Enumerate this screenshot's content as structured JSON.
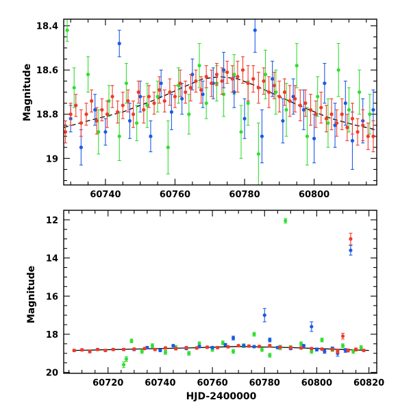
{
  "colors": {
    "green": "#33dd33",
    "blue": "#1a5be6",
    "red": "#f03a2a",
    "fit": "#000000"
  },
  "chart_data": [
    {
      "type": "scatter",
      "panel": "top",
      "title": "",
      "xlabel": "",
      "ylabel": "Magnitude",
      "xlim": [
        60728,
        60818
      ],
      "ylim": [
        19.12,
        18.37
      ],
      "y_inverted": true,
      "xticks": [
        60740,
        60760,
        60780,
        60800
      ],
      "yticks": [
        18.4,
        18.6,
        18.8,
        19
      ],
      "ytick_labels": [
        "18.4",
        "18.6",
        "18.8",
        "19"
      ],
      "grid": false,
      "legend": "none",
      "fit": {
        "style": "dashed",
        "x": [
          60728,
          60735,
          60745,
          60755,
          60762,
          60768,
          60773,
          60778,
          60783,
          60790,
          60797,
          60805,
          60812,
          60818
        ],
        "y": [
          18.86,
          18.83,
          18.79,
          18.73,
          18.68,
          18.64,
          18.63,
          18.64,
          18.67,
          18.72,
          18.77,
          18.82,
          18.85,
          18.87
        ]
      },
      "series": [
        {
          "color": "green",
          "x": [
            60729,
            60731,
            60735,
            60738,
            60741,
            60744,
            60746,
            60749,
            60752,
            60755,
            60758,
            60761,
            60764,
            60767,
            60769,
            60772,
            60774,
            60777,
            60779,
            60781,
            60784,
            60786,
            60789,
            60792,
            60795,
            60798,
            60801,
            60804,
            60807,
            60810,
            60813,
            60816
          ],
          "y": [
            18.42,
            18.68,
            18.62,
            18.88,
            18.74,
            18.9,
            18.66,
            18.84,
            18.76,
            18.72,
            18.95,
            18.67,
            18.8,
            18.58,
            18.75,
            18.66,
            18.71,
            18.62,
            18.88,
            18.75,
            18.98,
            18.62,
            18.7,
            18.78,
            18.58,
            18.9,
            18.72,
            18.84,
            18.6,
            18.78,
            18.7,
            18.8
          ],
          "err": [
            0.05,
            0.09,
            0.08,
            0.1,
            0.07,
            0.11,
            0.09,
            0.08,
            0.1,
            0.07,
            0.12,
            0.08,
            0.09,
            0.1,
            0.07,
            0.08,
            0.1,
            0.09,
            0.12,
            0.1,
            0.14,
            0.11,
            0.1,
            0.12,
            0.1,
            0.13,
            0.09,
            0.11,
            0.12,
            0.1,
            0.1,
            0.09
          ]
        },
        {
          "color": "blue",
          "x": [
            60730,
            60733,
            60737,
            60740,
            60744,
            60747,
            60750,
            60753,
            60756,
            60759,
            60762,
            60765,
            60768,
            60771,
            60774,
            60777,
            60780,
            60783,
            60785,
            60788,
            60791,
            60794,
            60797,
            60800,
            60803,
            60806,
            60809,
            60811,
            60814,
            60817
          ],
          "y": [
            18.82,
            18.95,
            18.78,
            18.88,
            18.48,
            18.83,
            18.72,
            18.9,
            18.66,
            18.79,
            18.73,
            18.62,
            18.71,
            18.66,
            18.6,
            18.7,
            18.82,
            18.42,
            18.9,
            18.64,
            18.83,
            18.72,
            18.78,
            18.91,
            18.66,
            18.85,
            18.75,
            18.92,
            18.83,
            18.78
          ],
          "err": [
            0.06,
            0.08,
            0.07,
            0.06,
            0.06,
            0.08,
            0.07,
            0.07,
            0.06,
            0.08,
            0.07,
            0.07,
            0.06,
            0.07,
            0.08,
            0.07,
            0.09,
            0.1,
            0.12,
            0.08,
            0.1,
            0.08,
            0.09,
            0.11,
            0.09,
            0.1,
            0.1,
            0.13,
            0.1,
            0.09
          ]
        },
        {
          "color": "red",
          "x": [
            60728.5,
            60730,
            60731.5,
            60733,
            60734.5,
            60736,
            60737.5,
            60739,
            60740.5,
            60742,
            60743.5,
            60745,
            60746.5,
            60748,
            60749.5,
            60751,
            60752.5,
            60754,
            60755.5,
            60757,
            60758.5,
            60760,
            60761.5,
            60763,
            60764.5,
            60766,
            60767.5,
            60769,
            60770.5,
            60772,
            60773.5,
            60775,
            60776.5,
            60778,
            60779.5,
            60781,
            60782.5,
            60784,
            60785.5,
            60787,
            60788.5,
            60790,
            60791.5,
            60793,
            60794.5,
            60796,
            60797.5,
            60799,
            60800.5,
            60802,
            60803.5,
            60805,
            60806.5,
            60808,
            60809.5,
            60811,
            60812.5,
            60814,
            60815.5,
            60817
          ],
          "y": [
            18.88,
            18.8,
            18.76,
            18.84,
            18.8,
            18.74,
            18.83,
            18.78,
            18.8,
            18.72,
            18.79,
            18.76,
            18.74,
            18.8,
            18.7,
            18.78,
            18.72,
            18.75,
            18.69,
            18.74,
            18.7,
            18.72,
            18.66,
            18.7,
            18.68,
            18.65,
            18.69,
            18.63,
            18.66,
            18.62,
            18.65,
            18.61,
            18.64,
            18.63,
            18.6,
            18.66,
            18.64,
            18.68,
            18.65,
            18.7,
            18.67,
            18.72,
            18.7,
            18.74,
            18.73,
            18.76,
            18.75,
            18.78,
            18.8,
            18.77,
            18.82,
            18.8,
            18.84,
            18.8,
            18.86,
            18.82,
            18.88,
            18.85,
            18.9,
            18.9
          ],
          "err": [
            0.05,
            0.05,
            0.05,
            0.06,
            0.05,
            0.05,
            0.06,
            0.05,
            0.06,
            0.05,
            0.05,
            0.06,
            0.05,
            0.06,
            0.05,
            0.06,
            0.05,
            0.05,
            0.06,
            0.05,
            0.06,
            0.05,
            0.06,
            0.05,
            0.06,
            0.05,
            0.06,
            0.05,
            0.06,
            0.05,
            0.06,
            0.05,
            0.06,
            0.07,
            0.06,
            0.08,
            0.06,
            0.07,
            0.06,
            0.07,
            0.06,
            0.07,
            0.06,
            0.07,
            0.06,
            0.07,
            0.06,
            0.07,
            0.06,
            0.07,
            0.06,
            0.07,
            0.06,
            0.07,
            0.06,
            0.07,
            0.06,
            0.07,
            0.06,
            0.07
          ]
        }
      ]
    },
    {
      "type": "scatter",
      "panel": "bottom",
      "title": "",
      "xlabel": "HJD-2400000",
      "ylabel": "Magnitude",
      "xlim": [
        60703,
        60823
      ],
      "ylim": [
        20.05,
        11.5
      ],
      "y_inverted": true,
      "xticks": [
        60720,
        60740,
        60760,
        60780,
        60800,
        60820
      ],
      "yticks": [
        12,
        14,
        16,
        18,
        20
      ],
      "ytick_labels": [
        "12",
        "14",
        "16",
        "18",
        "20"
      ],
      "grid": false,
      "legend": "none",
      "fit": {
        "style": "solid",
        "x": [
          60707,
          60730,
          60750,
          60770,
          60790,
          60810,
          60820
        ],
        "y": [
          18.85,
          18.78,
          18.72,
          18.64,
          18.7,
          18.8,
          18.85
        ]
      },
      "series": [
        {
          "color": "green",
          "x": [
            60726,
            60727,
            60729,
            60733,
            60737,
            60742,
            60746,
            60751,
            60755,
            60760,
            60764,
            60768,
            60772,
            60776,
            60779,
            60782,
            60786,
            60788,
            60790,
            60794,
            60798,
            60802,
            60806,
            60810,
            60814,
            60817
          ],
          "y": [
            19.6,
            19.3,
            18.35,
            18.9,
            18.6,
            18.95,
            18.7,
            19.0,
            18.5,
            18.8,
            18.45,
            18.9,
            18.6,
            18.0,
            18.8,
            19.1,
            18.7,
            12.05,
            18.7,
            18.5,
            18.9,
            18.3,
            18.8,
            18.6,
            18.9,
            18.7
          ],
          "err": [
            0.15,
            0.12,
            0.1,
            0.1,
            0.1,
            0.1,
            0.1,
            0.1,
            0.1,
            0.1,
            0.1,
            0.1,
            0.1,
            0.1,
            0.1,
            0.1,
            0.12,
            0.12,
            0.1,
            0.1,
            0.1,
            0.1,
            0.1,
            0.1,
            0.1,
            0.1
          ]
        },
        {
          "color": "blue",
          "x": [
            60730,
            60735,
            60740,
            60745,
            60750,
            60755,
            60760,
            60765,
            60768,
            60772,
            60776,
            60780,
            60782,
            60785,
            60790,
            60795,
            60798,
            60800,
            60803,
            60806,
            60808,
            60811,
            60813
          ],
          "y": [
            18.8,
            18.7,
            18.85,
            18.6,
            18.75,
            18.65,
            18.7,
            18.55,
            18.2,
            18.6,
            18.65,
            17.0,
            18.3,
            18.7,
            18.75,
            18.6,
            17.6,
            18.8,
            18.9,
            18.75,
            19.0,
            18.85,
            13.6
          ],
          "err": [
            0.06,
            0.06,
            0.06,
            0.06,
            0.06,
            0.06,
            0.06,
            0.06,
            0.1,
            0.06,
            0.06,
            0.35,
            0.1,
            0.06,
            0.06,
            0.06,
            0.25,
            0.08,
            0.1,
            0.08,
            0.15,
            0.1,
            0.25
          ]
        },
        {
          "color": "red",
          "x": [
            60707,
            60710,
            60713,
            60716,
            60719,
            60722,
            60726,
            60730,
            60734,
            60738,
            60742,
            60746,
            60750,
            60754,
            60758,
            60762,
            60766,
            60770,
            60774,
            60778,
            60782,
            60786,
            60790,
            60794,
            60798,
            60802,
            60806,
            60808,
            60810,
            60812,
            60813,
            60815,
            60818
          ],
          "y": [
            18.85,
            18.82,
            18.9,
            18.8,
            18.85,
            18.8,
            18.8,
            18.78,
            18.75,
            18.8,
            18.72,
            18.76,
            18.7,
            18.72,
            18.68,
            18.7,
            18.66,
            18.6,
            18.62,
            18.64,
            18.6,
            18.68,
            18.7,
            18.72,
            18.75,
            18.78,
            18.8,
            18.9,
            18.1,
            18.85,
            13.0,
            18.8,
            18.85
          ],
          "err": [
            0.06,
            0.06,
            0.08,
            0.06,
            0.06,
            0.06,
            0.06,
            0.06,
            0.06,
            0.06,
            0.06,
            0.06,
            0.06,
            0.06,
            0.06,
            0.06,
            0.06,
            0.06,
            0.06,
            0.06,
            0.06,
            0.06,
            0.06,
            0.06,
            0.06,
            0.06,
            0.06,
            0.1,
            0.15,
            0.08,
            0.3,
            0.08,
            0.06
          ]
        }
      ]
    }
  ]
}
